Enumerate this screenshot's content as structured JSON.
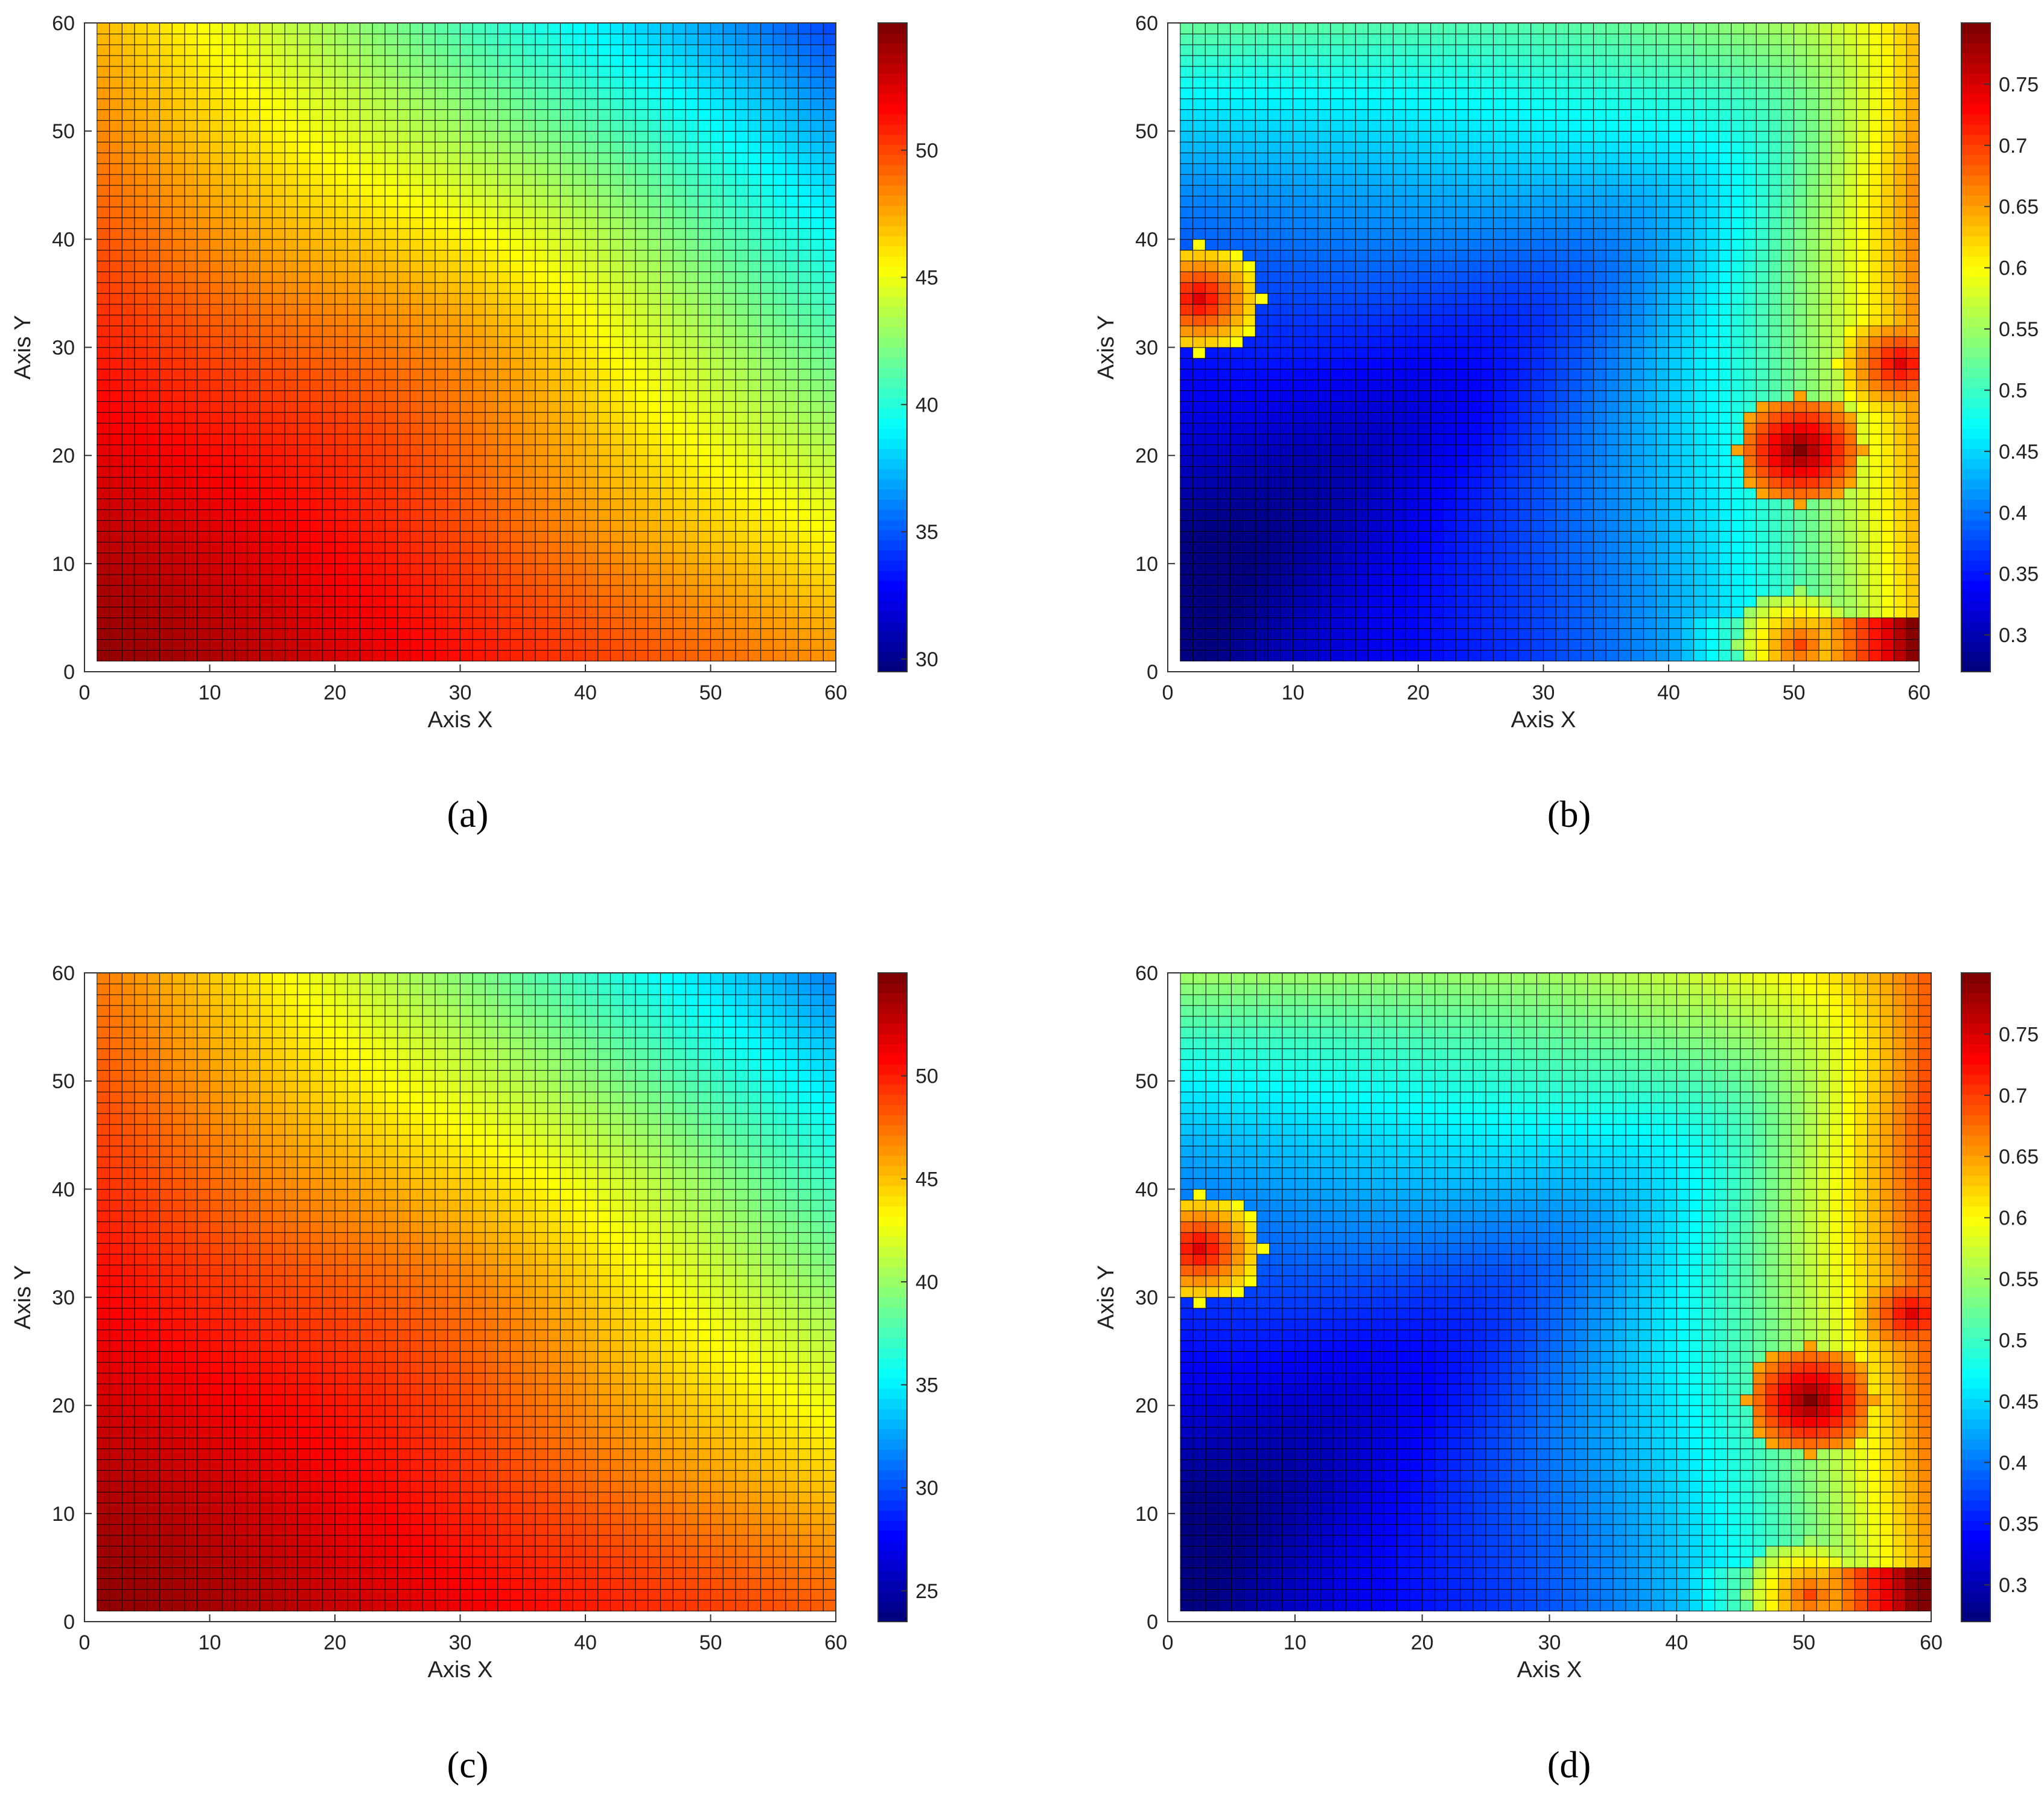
{
  "chart_data": [
    {
      "type": "heatmap",
      "caption": "(a)",
      "xlabel": "Axis X",
      "ylabel": "Axis Y",
      "xlim": [
        0,
        60
      ],
      "ylim": [
        0,
        60
      ],
      "grid_cells": [
        1,
        60
      ],
      "xticks": [
        "0",
        "10",
        "20",
        "30",
        "40",
        "50",
        "60"
      ],
      "yticks": [
        "0",
        "10",
        "20",
        "30",
        "40",
        "50",
        "60"
      ],
      "colormap": "jet",
      "clim": [
        29.5,
        55
      ],
      "colorbar_ticks": [
        "30",
        "35",
        "40",
        "45",
        "50"
      ],
      "field": {
        "description_values": "corner values at (x,y)",
        "x1_y1": 54.5,
        "x60_y1": 48.0,
        "x1_y60": 47.0,
        "x60_y60": 34.0,
        "x15_y15": 51.0,
        "x30_y30": 47.5,
        "x45_y45": 44.0
      }
    },
    {
      "type": "heatmap",
      "caption": "(b)",
      "xlabel": "Axis X",
      "ylabel": "Axis Y",
      "xlim": [
        0,
        60
      ],
      "ylim": [
        0,
        60
      ],
      "grid_cells": [
        1,
        60
      ],
      "xticks": [
        "0",
        "10",
        "20",
        "30",
        "40",
        "50",
        "60"
      ],
      "yticks": [
        "0",
        "10",
        "20",
        "30",
        "40",
        "50",
        "60"
      ],
      "colormap": "jet",
      "clim": [
        0.27,
        0.8
      ],
      "colorbar_ticks": [
        "0.3",
        "0.35",
        "0.4",
        "0.45",
        "0.5",
        "0.55",
        "0.6",
        "0.65",
        "0.7",
        "0.75"
      ],
      "hotspots": [
        {
          "x": 50,
          "y": 20,
          "peak": 0.8
        },
        {
          "x": 2,
          "y": 34,
          "peak": 0.75
        },
        {
          "x": 58,
          "y": 28,
          "peak": 0.75
        },
        {
          "x": 50,
          "y": 2,
          "peak": 0.7
        }
      ]
    },
    {
      "type": "heatmap",
      "caption": "(c)",
      "xlabel": "Axis X",
      "ylabel": "Axis Y",
      "xlim": [
        0,
        60
      ],
      "ylim": [
        0,
        60
      ],
      "grid_cells": [
        1,
        60
      ],
      "xticks": [
        "0",
        "10",
        "20",
        "30",
        "40",
        "50",
        "60"
      ],
      "yticks": [
        "0",
        "10",
        "20",
        "30",
        "40",
        "50",
        "60"
      ],
      "colormap": "jet",
      "clim": [
        23.5,
        55
      ],
      "colorbar_ticks": [
        "25",
        "30",
        "35",
        "40",
        "45",
        "50"
      ],
      "field": {
        "x1_y1": 54.5,
        "x60_y1": 48.0,
        "x1_y60": 47.0,
        "x60_y60": 31.0,
        "x15_y15": 51.0,
        "x30_y30": 47.0,
        "x45_y45": 42.0
      }
    },
    {
      "type": "heatmap",
      "caption": "(d)",
      "xlabel": "Axis X",
      "ylabel": "Axis Y",
      "xlim": [
        0,
        60
      ],
      "ylim": [
        0,
        60
      ],
      "grid_cells": [
        1,
        60
      ],
      "xticks": [
        "0",
        "10",
        "20",
        "30",
        "40",
        "50",
        "60"
      ],
      "yticks": [
        "0",
        "10",
        "20",
        "30",
        "40",
        "50",
        "60"
      ],
      "colormap": "jet",
      "clim": [
        0.27,
        0.8
      ],
      "colorbar_ticks": [
        "0.3",
        "0.35",
        "0.4",
        "0.45",
        "0.5",
        "0.55",
        "0.6",
        "0.65",
        "0.7",
        "0.75"
      ],
      "hotspots": [
        {
          "x": 50,
          "y": 20,
          "peak": 0.8
        },
        {
          "x": 2,
          "y": 34,
          "peak": 0.75
        },
        {
          "x": 58,
          "y": 28,
          "peak": 0.75
        },
        {
          "x": 50,
          "y": 2,
          "peak": 0.7
        }
      ]
    }
  ]
}
